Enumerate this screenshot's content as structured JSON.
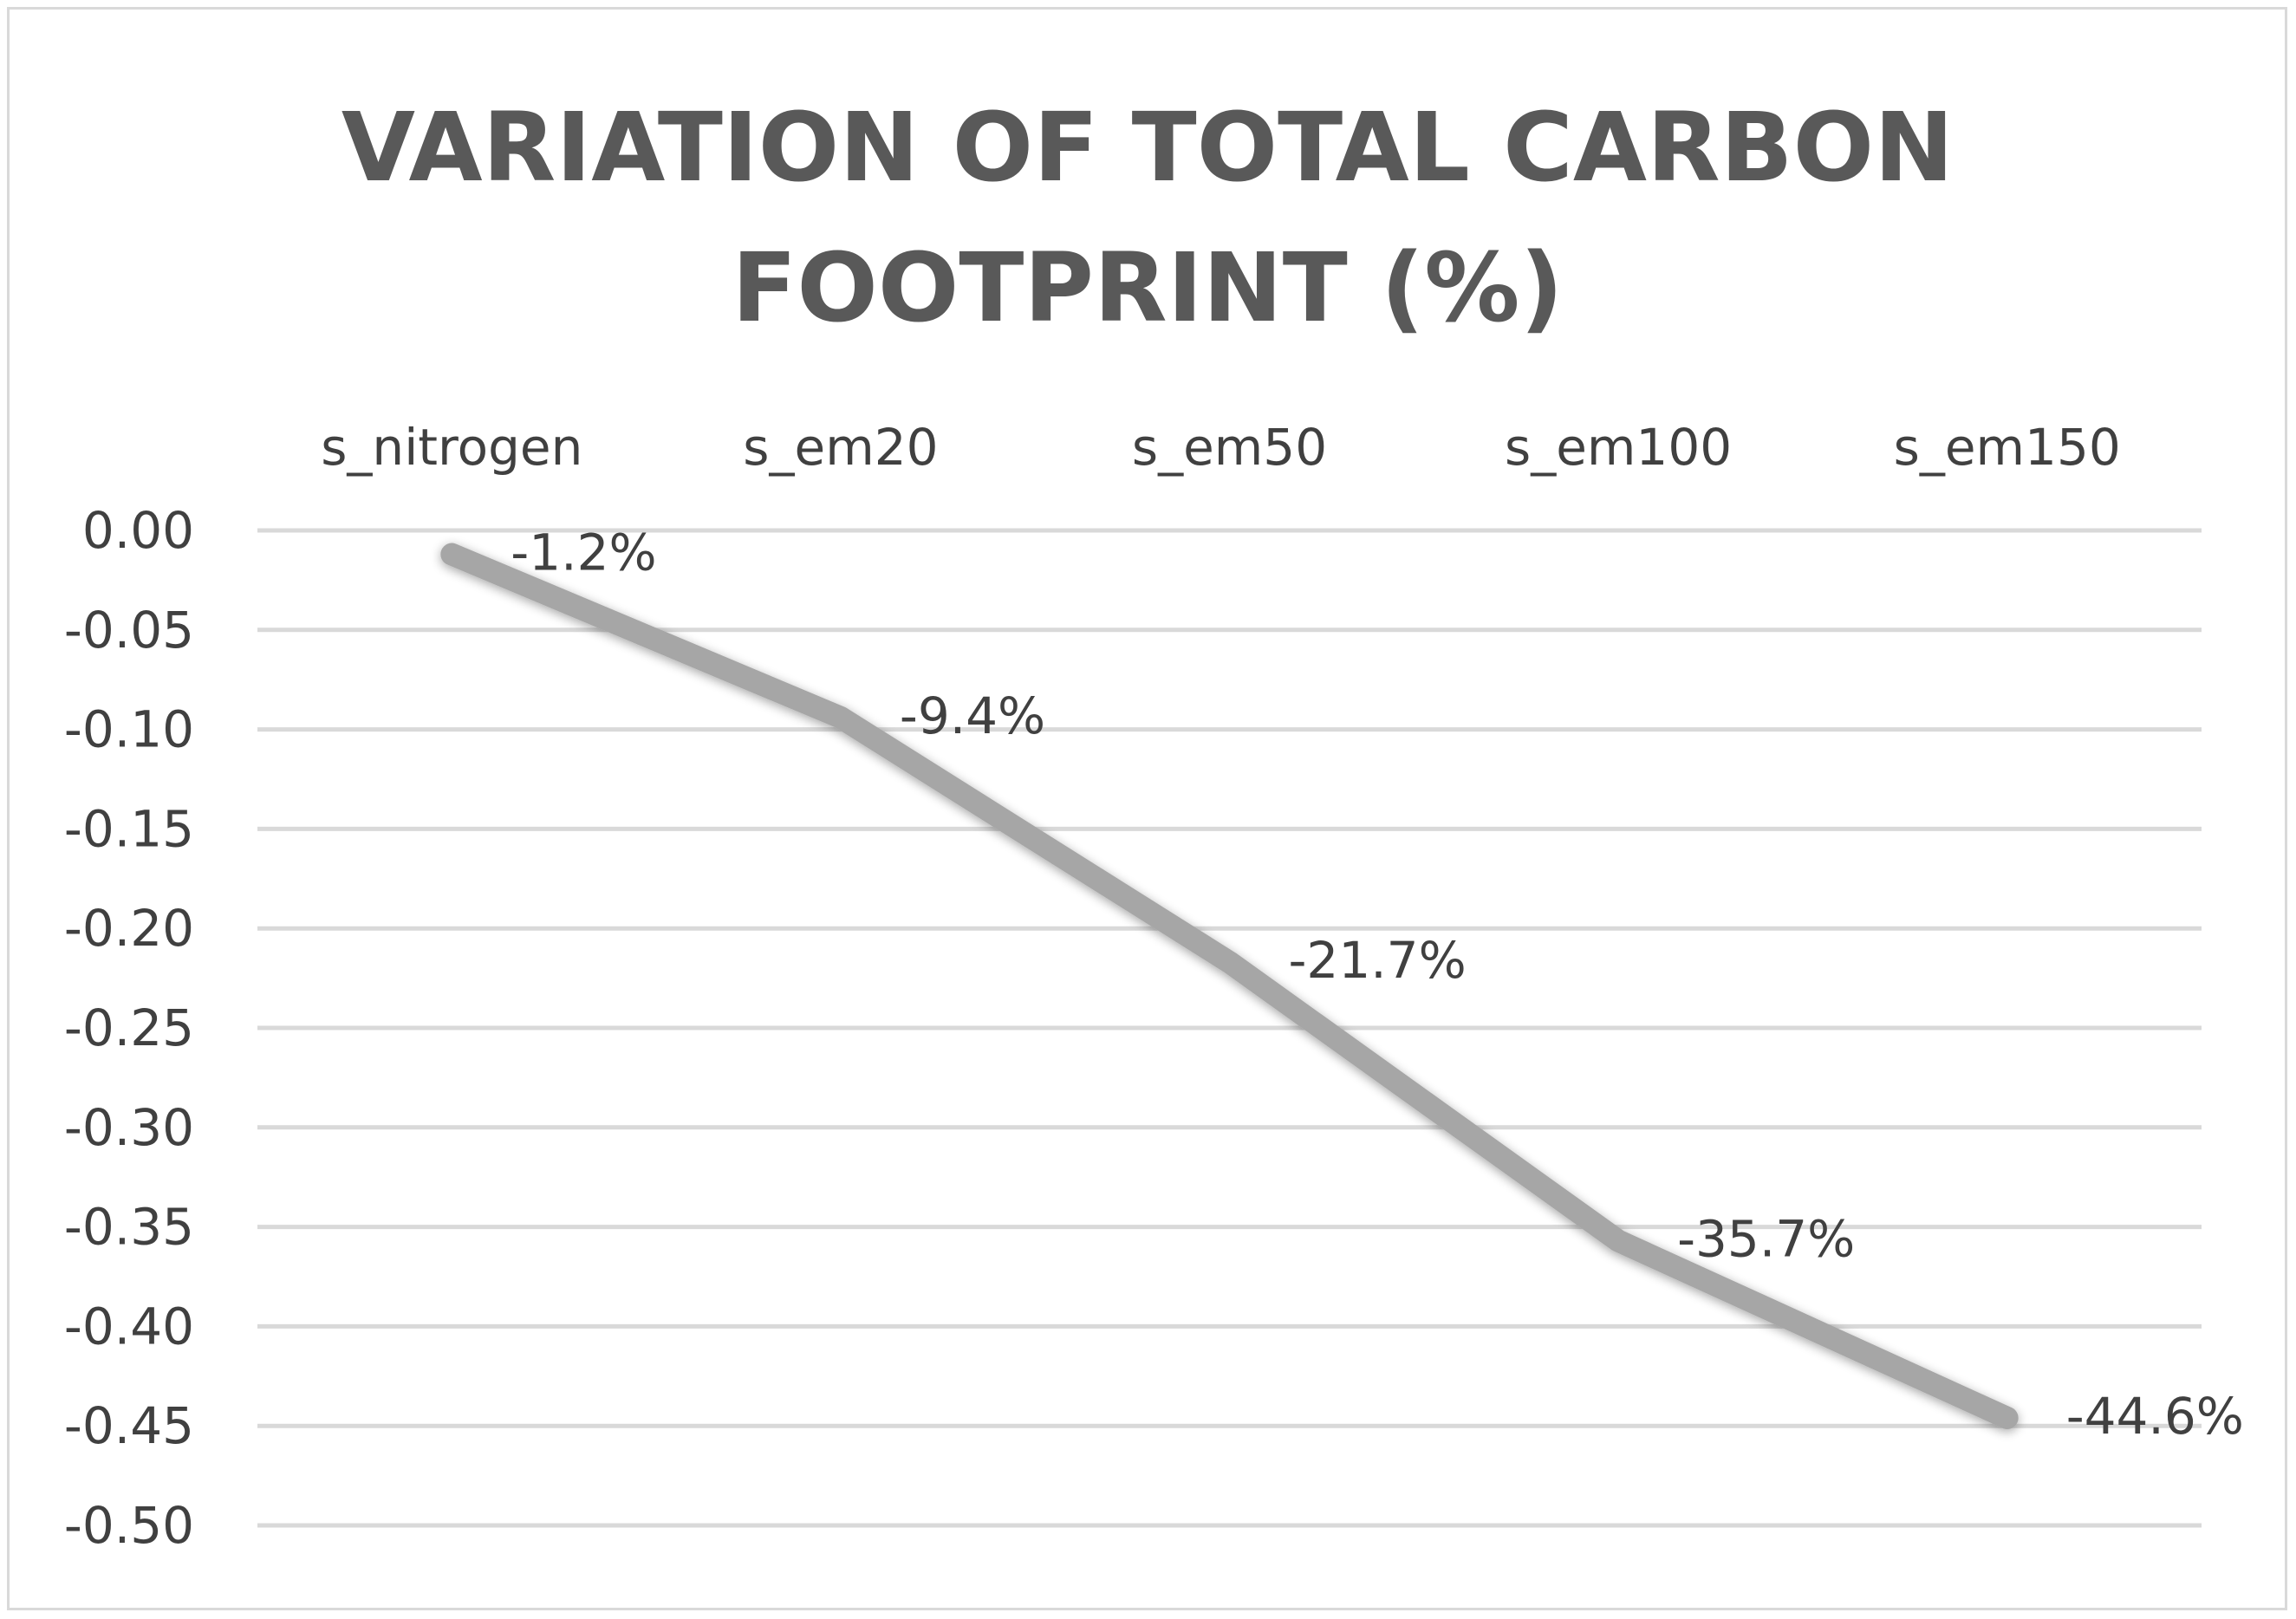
{
  "chart_data": {
    "type": "line",
    "title_lines": [
      "VARIATION OF TOTAL CARBON",
      "FOOTPRINT (%)"
    ],
    "categories": [
      "s_nitrogen",
      "s_em20",
      "s_em50",
      "s_em100",
      "s_em150"
    ],
    "values": [
      -0.012,
      -0.094,
      -0.217,
      -0.357,
      -0.446
    ],
    "data_labels": [
      "-1.2%",
      "-9.4%",
      "-21.7%",
      "-35.7%",
      "-44.6%"
    ],
    "y_ticks": [
      "0.00",
      "-0.05",
      "-0.10",
      "-0.15",
      "-0.20",
      "-0.25",
      "-0.30",
      "-0.35",
      "-0.40",
      "-0.45",
      "-0.50"
    ],
    "ylim": [
      -0.5,
      0
    ],
    "x_axis_position": "top",
    "grid": true,
    "line_color": "#a6a6a6",
    "grid_color": "#d9d9d9",
    "text_color": "#404040",
    "title_color": "#595959"
  }
}
